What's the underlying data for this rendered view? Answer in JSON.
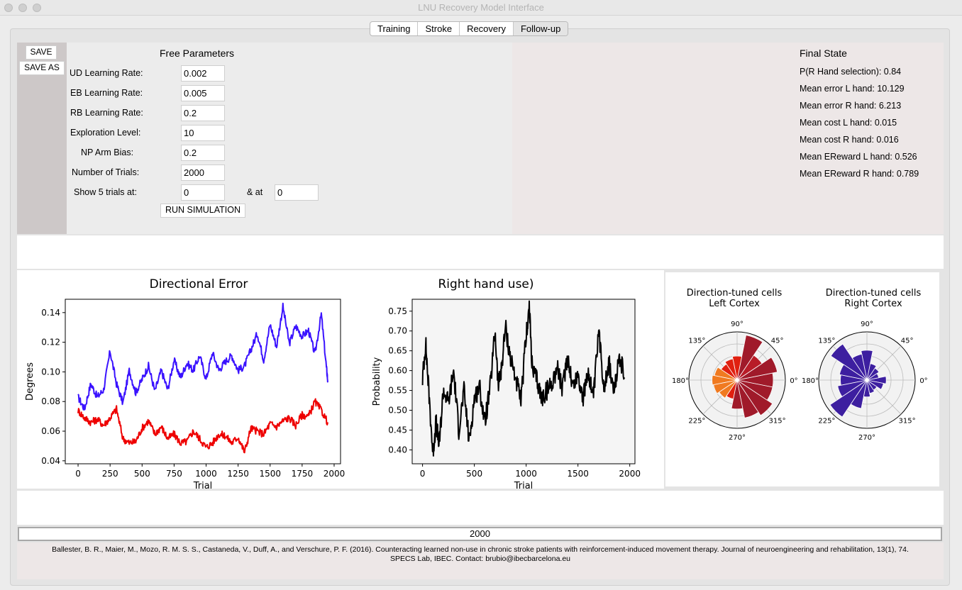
{
  "window": {
    "title": "LNU Recovery Model Interface"
  },
  "tabs": [
    "Training",
    "Stroke",
    "Recovery",
    "Follow-up"
  ],
  "buttons": {
    "save": "SAVE",
    "save_as": "SAVE AS",
    "run": "RUN SIMULATION"
  },
  "params": {
    "heading": "Free Parameters",
    "ud_label": "UD Learning Rate:",
    "ud_value": "0.002",
    "eb_label": "EB Learning Rate:",
    "eb_value": "0.005",
    "rb_label": "RB Learning Rate:",
    "rb_value": "0.2",
    "exp_label": "Exploration Level:",
    "exp_value": "10",
    "np_label": "NP Arm Bias:",
    "np_value": "0.2",
    "trials_label": "Number of Trials:",
    "trials_value": "2000",
    "show_label": "Show 5 trials at:",
    "show_value1": "0",
    "and_label": "& at",
    "show_value2": "0"
  },
  "final_state": {
    "heading": "Final State",
    "lines": [
      "P(R Hand selection): 0.84",
      "Mean error L hand: 10.129",
      "Mean error R hand: 6.213",
      "Mean cost L hand: 0.015",
      "Mean cost R hand: 0.016",
      "Mean EReward L hand: 0.526",
      "Mean EReward R hand: 0.789"
    ]
  },
  "progress": {
    "value": "2000"
  },
  "footer": {
    "citation": "Ballester, B. R., Maier, M., Mozo, R. M. S. S., Castaneda, V., Duff, A., and Verschure, P. F. (2016). Counteracting learned non-use in chronic stroke patients with reinforcement-induced movement therapy. Journal of neuroengineering and rehabilitation, 13(1), 74.",
    "contact": "SPECS Lab, IBEC. Contact: brubio@ibecbarcelona.eu"
  },
  "chart_data": [
    {
      "type": "line",
      "title": "Directional Error",
      "xlabel": "Trial",
      "ylabel": "Degrees",
      "xlim": [
        -100,
        2050
      ],
      "ylim": [
        0.038,
        0.149
      ],
      "xticks": [
        "0",
        "250",
        "500",
        "750",
        "1000",
        "1250",
        "1500",
        "1750",
        "2000"
      ],
      "yticks": [
        "0.04",
        "0.06",
        "0.08",
        "0.10",
        "0.12",
        "0.14"
      ],
      "series": [
        {
          "color": "#3a12ff",
          "x": [
            0,
            50,
            100,
            150,
            200,
            250,
            300,
            350,
            400,
            450,
            500,
            550,
            600,
            650,
            700,
            750,
            800,
            850,
            900,
            950,
            1000,
            1050,
            1100,
            1150,
            1200,
            1250,
            1300,
            1350,
            1400,
            1450,
            1500,
            1550,
            1600,
            1650,
            1700,
            1750,
            1800,
            1850,
            1900,
            1940,
            1950
          ],
          "y": [
            0.083,
            0.075,
            0.092,
            0.083,
            0.088,
            0.114,
            0.092,
            0.079,
            0.101,
            0.086,
            0.095,
            0.104,
            0.087,
            0.101,
            0.088,
            0.108,
            0.096,
            0.106,
            0.101,
            0.111,
            0.095,
            0.113,
            0.101,
            0.107,
            0.111,
            0.101,
            0.104,
            0.115,
            0.126,
            0.108,
            0.132,
            0.117,
            0.144,
            0.119,
            0.131,
            0.124,
            0.128,
            0.112,
            0.139,
            0.103,
            0.094
          ]
        },
        {
          "color": "#ee0000",
          "x": [
            0,
            50,
            100,
            150,
            200,
            250,
            300,
            350,
            400,
            450,
            500,
            550,
            600,
            650,
            700,
            750,
            800,
            850,
            900,
            950,
            1000,
            1050,
            1100,
            1150,
            1200,
            1250,
            1300,
            1350,
            1400,
            1450,
            1500,
            1550,
            1600,
            1650,
            1700,
            1750,
            1800,
            1850,
            1900,
            1950
          ],
          "y": [
            0.074,
            0.069,
            0.066,
            0.068,
            0.064,
            0.069,
            0.075,
            0.055,
            0.052,
            0.053,
            0.062,
            0.067,
            0.058,
            0.063,
            0.055,
            0.058,
            0.052,
            0.053,
            0.06,
            0.055,
            0.049,
            0.052,
            0.058,
            0.057,
            0.052,
            0.056,
            0.046,
            0.062,
            0.06,
            0.058,
            0.065,
            0.063,
            0.067,
            0.069,
            0.064,
            0.071,
            0.07,
            0.08,
            0.074,
            0.066
          ]
        }
      ]
    },
    {
      "type": "line",
      "title": "Right hand use)",
      "xlabel": "Trial",
      "ylabel": "Probability",
      "xlim": [
        -100,
        2050
      ],
      "ylim": [
        0.365,
        0.78
      ],
      "xticks": [
        "0",
        "500",
        "1000",
        "1500",
        "2000"
      ],
      "yticks": [
        "0.40",
        "0.45",
        "0.50",
        "0.55",
        "0.60",
        "0.65",
        "0.70",
        "0.75"
      ],
      "series": [
        {
          "color": "#000000",
          "x": [
            0,
            30,
            60,
            100,
            130,
            160,
            200,
            250,
            300,
            350,
            400,
            450,
            500,
            550,
            600,
            650,
            700,
            730,
            760,
            800,
            850,
            900,
            950,
            1000,
            1030,
            1060,
            1100,
            1150,
            1200,
            1250,
            1300,
            1350,
            1400,
            1450,
            1500,
            1550,
            1600,
            1650,
            1700,
            1750,
            1800,
            1850,
            1900,
            1950
          ],
          "y": [
            0.58,
            0.67,
            0.55,
            0.39,
            0.47,
            0.41,
            0.55,
            0.52,
            0.6,
            0.45,
            0.55,
            0.42,
            0.53,
            0.56,
            0.47,
            0.55,
            0.7,
            0.56,
            0.6,
            0.71,
            0.63,
            0.58,
            0.52,
            0.69,
            0.76,
            0.6,
            0.58,
            0.53,
            0.55,
            0.57,
            0.61,
            0.55,
            0.64,
            0.56,
            0.59,
            0.53,
            0.6,
            0.53,
            0.7,
            0.56,
            0.62,
            0.54,
            0.64,
            0.58
          ]
        }
      ]
    },
    {
      "type": "bar",
      "subtype": "polar",
      "title": "Direction-tuned cells\nLeft Cortex",
      "angle_labels": [
        "0°",
        "45°",
        "90°",
        "135°",
        "180°",
        "225°",
        "270°",
        "315°"
      ],
      "bin_width_deg": 22.5,
      "bins_deg": [
        0,
        22.5,
        45,
        67.5,
        90,
        112.5,
        135,
        157.5,
        180,
        202.5,
        225,
        247.5,
        270,
        292.5,
        315,
        337.5
      ],
      "r": [
        0.75,
        0.85,
        0.62,
        0.95,
        0.5,
        0.45,
        0.4,
        0.48,
        0.52,
        0.5,
        0.45,
        0.4,
        0.6,
        0.8,
        0.88,
        0.75
      ],
      "colors": [
        "#a01a2a",
        "#a01a2a",
        "#b81c28",
        "#a01a2a",
        "#e02010",
        "#e02010",
        "#e02010",
        "#f07a20",
        "#f07a20",
        "#f07a20",
        "#f07a20",
        "#e02010",
        "#a01a2a",
        "#a01a2a",
        "#a01a2a",
        "#a01a2a"
      ]
    },
    {
      "type": "bar",
      "subtype": "polar",
      "title": "Direction-tuned cells\nRight Cortex",
      "angle_labels": [
        "0°",
        "45°",
        "90°",
        "135°",
        "180°",
        "225°",
        "270°",
        "315°"
      ],
      "bin_width_deg": 22.5,
      "bins_deg": [
        0,
        22.5,
        45,
        67.5,
        90,
        112.5,
        135,
        157.5,
        180,
        202.5,
        225,
        247.5,
        270,
        292.5,
        315,
        337.5
      ],
      "r": [
        0.4,
        0.25,
        0.3,
        0.35,
        0.62,
        0.55,
        0.9,
        0.58,
        0.55,
        0.62,
        0.92,
        0.6,
        0.35,
        0.28,
        0.25,
        0.35
      ],
      "colors": [
        "#3d1fa0",
        "#3d1fa0",
        "#3d1fa0",
        "#3d1fa0",
        "#3d1fa0",
        "#3d1fa0",
        "#3d1fa0",
        "#3d1fa0",
        "#3d1fa0",
        "#3d1fa0",
        "#3d1fa0",
        "#3d1fa0",
        "#3d1fa0",
        "#3d1fa0",
        "#3d1fa0",
        "#3d1fa0"
      ]
    }
  ]
}
